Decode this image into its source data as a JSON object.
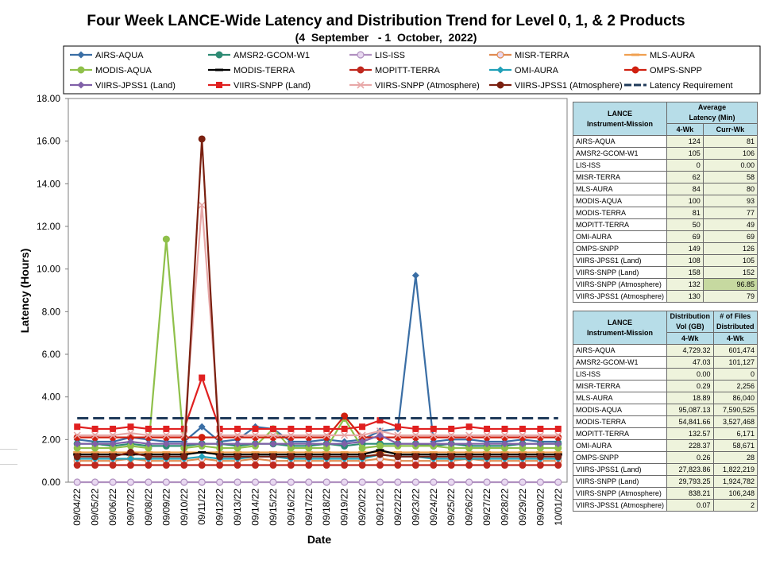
{
  "title": "Four Week LANCE-Wide Latency and Distribution Trend for Level 0, 1, & 2 Products",
  "subtitle": "(4  September   - 1  October,  2022)",
  "chart_data": {
    "type": "line",
    "xlabel": "Date",
    "ylabel": "Latency (Hours)",
    "ylim": [
      0,
      18
    ],
    "yticks": [
      "0.00",
      "2.00",
      "4.00",
      "6.00",
      "8.00",
      "10.00",
      "12.00",
      "14.00",
      "16.00",
      "18.00"
    ],
    "legend_position": "top",
    "grid": false,
    "categories": [
      "09/04/22",
      "09/05/22",
      "09/06/22",
      "09/07/22",
      "09/08/22",
      "09/09/22",
      "09/10/22",
      "09/11/22",
      "09/12/22",
      "09/13/22",
      "09/14/22",
      "09/15/22",
      "09/16/22",
      "09/17/22",
      "09/18/22",
      "09/19/22",
      "09/20/22",
      "09/21/22",
      "09/22/22",
      "09/23/22",
      "09/24/22",
      "09/25/22",
      "09/26/22",
      "09/27/22",
      "09/28/22",
      "09/29/22",
      "09/30/22",
      "10/01/22"
    ],
    "series": [
      {
        "name": "AIRS-AQUA",
        "color": "#3a6ea5",
        "marker": "diamond",
        "values": [
          2.0,
          1.9,
          1.9,
          2.1,
          2.0,
          1.9,
          1.9,
          2.6,
          1.9,
          2.0,
          2.6,
          2.5,
          1.9,
          1.9,
          2.0,
          1.9,
          2.0,
          2.4,
          2.5,
          9.7,
          1.9,
          2.0,
          2.0,
          1.9,
          1.9,
          2.0,
          1.9,
          1.9
        ]
      },
      {
        "name": "AMSR2-GCOM-W1",
        "color": "#2e8b74",
        "marker": "circle",
        "values": [
          1.8,
          1.8,
          1.7,
          1.8,
          1.7,
          1.7,
          1.7,
          1.8,
          1.8,
          1.7,
          1.8,
          1.8,
          1.7,
          1.7,
          1.8,
          1.7,
          1.8,
          1.8,
          1.8,
          1.8,
          1.7,
          1.8,
          1.7,
          1.7,
          1.7,
          1.8,
          1.8,
          1.8
        ]
      },
      {
        "name": "LIS-ISS",
        "color": "#b090c0",
        "marker": "circle-open",
        "values": [
          0,
          0,
          0,
          0,
          0,
          0,
          0,
          0,
          0,
          0,
          0,
          0,
          0,
          0,
          0,
          0,
          0,
          0,
          0,
          0,
          0,
          0,
          0,
          0,
          0,
          0,
          0,
          0
        ]
      },
      {
        "name": "MISR-TERRA",
        "color": "#e08a50",
        "marker": "circle-open",
        "values": [
          1.0,
          1.0,
          1.0,
          1.1,
          1.0,
          1.0,
          1.0,
          1.1,
          1.0,
          1.0,
          1.1,
          1.0,
          1.0,
          1.0,
          1.0,
          1.0,
          1.0,
          1.1,
          1.0,
          1.0,
          1.0,
          1.0,
          1.1,
          1.0,
          1.0,
          1.0,
          1.0,
          1.0
        ]
      },
      {
        "name": "MLS-AURA",
        "color": "#f0a050",
        "marker": "dash",
        "values": [
          1.4,
          1.4,
          1.4,
          1.4,
          1.4,
          1.4,
          1.4,
          1.4,
          1.4,
          1.4,
          1.4,
          1.4,
          1.4,
          1.4,
          1.4,
          1.4,
          1.4,
          1.4,
          1.4,
          1.4,
          1.4,
          1.4,
          1.4,
          1.4,
          1.4,
          1.4,
          1.4,
          1.4
        ]
      },
      {
        "name": "MODIS-AQUA",
        "color": "#8fc04a",
        "marker": "circle",
        "values": [
          1.6,
          1.6,
          1.6,
          1.7,
          1.6,
          11.4,
          1.6,
          1.7,
          1.6,
          1.6,
          1.7,
          2.5,
          1.6,
          1.6,
          1.6,
          3.0,
          1.6,
          1.7,
          1.7,
          1.7,
          1.7,
          1.6,
          1.6,
          1.6,
          1.6,
          1.6,
          1.6,
          1.6
        ]
      },
      {
        "name": "MODIS-TERRA",
        "color": "#000000",
        "marker": "dash",
        "values": [
          1.3,
          1.3,
          1.3,
          1.3,
          1.3,
          1.3,
          1.3,
          1.4,
          1.3,
          1.3,
          1.3,
          1.3,
          1.3,
          1.3,
          1.3,
          1.3,
          1.3,
          1.5,
          1.3,
          1.3,
          1.3,
          1.3,
          1.3,
          1.3,
          1.3,
          1.3,
          1.3,
          1.3
        ]
      },
      {
        "name": "MOPITT-TERRA",
        "color": "#c0281e",
        "marker": "circle",
        "values": [
          0.8,
          0.8,
          0.8,
          0.8,
          0.8,
          0.8,
          0.8,
          0.8,
          0.8,
          0.8,
          0.8,
          0.8,
          0.8,
          0.8,
          0.8,
          0.8,
          0.8,
          0.8,
          0.8,
          0.8,
          0.8,
          0.8,
          0.8,
          0.8,
          0.8,
          0.8,
          0.8,
          0.8
        ]
      },
      {
        "name": "OMI-AURA",
        "color": "#20a0b8",
        "marker": "diamond",
        "values": [
          1.1,
          1.1,
          1.1,
          1.1,
          1.1,
          1.1,
          1.1,
          1.2,
          1.1,
          1.1,
          1.2,
          1.2,
          1.1,
          1.1,
          1.1,
          1.1,
          1.1,
          1.3,
          1.2,
          1.2,
          1.1,
          1.1,
          1.1,
          1.1,
          1.1,
          1.1,
          1.1,
          1.1
        ]
      },
      {
        "name": "OMPS-SNPP",
        "color": "#d02010",
        "marker": "circle",
        "values": [
          2.1,
          2.1,
          2.1,
          2.1,
          2.1,
          2.1,
          2.1,
          2.1,
          2.1,
          2.1,
          2.1,
          2.1,
          2.1,
          2.1,
          2.1,
          3.1,
          2.1,
          2.1,
          2.1,
          2.1,
          2.1,
          2.1,
          2.1,
          2.1,
          2.1,
          2.1,
          2.1,
          2.1
        ]
      },
      {
        "name": "VIIRS-JPSS1 (Land)",
        "color": "#8060a8",
        "marker": "diamond",
        "values": [
          1.8,
          1.8,
          1.8,
          1.9,
          1.8,
          1.8,
          1.8,
          1.8,
          1.8,
          1.8,
          1.8,
          1.8,
          1.8,
          1.8,
          1.8,
          1.8,
          1.9,
          2.2,
          1.8,
          1.8,
          1.8,
          1.8,
          1.8,
          1.8,
          1.8,
          1.8,
          1.8,
          1.8
        ]
      },
      {
        "name": "VIIRS-SNPP (Land)",
        "color": "#e02020",
        "marker": "square",
        "values": [
          2.6,
          2.5,
          2.5,
          2.6,
          2.5,
          2.5,
          2.5,
          4.9,
          2.5,
          2.5,
          2.5,
          2.5,
          2.5,
          2.5,
          2.5,
          2.5,
          2.6,
          2.9,
          2.6,
          2.5,
          2.5,
          2.5,
          2.6,
          2.5,
          2.5,
          2.5,
          2.5,
          2.5
        ]
      },
      {
        "name": "VIIRS-SNPP (Atmosphere)",
        "color": "#e8a8a8",
        "marker": "x",
        "values": [
          2.2,
          2.2,
          2.2,
          2.3,
          2.2,
          2.2,
          2.2,
          13.0,
          2.2,
          2.2,
          2.2,
          2.2,
          2.2,
          2.2,
          2.2,
          2.2,
          2.2,
          2.4,
          2.2,
          2.2,
          2.2,
          2.2,
          2.2,
          2.2,
          2.2,
          2.2,
          2.2,
          2.2
        ]
      },
      {
        "name": "VIIRS-JPSS1 (Atmosphere)",
        "color": "#7a2010",
        "marker": "circle",
        "values": [
          1.2,
          1.2,
          1.2,
          1.4,
          1.2,
          1.2,
          1.2,
          16.1,
          1.2,
          1.2,
          1.2,
          1.2,
          1.2,
          1.2,
          1.2,
          1.2,
          1.2,
          1.3,
          1.2,
          1.2,
          1.2,
          1.2,
          1.2,
          1.2,
          1.2,
          1.2,
          1.2,
          1.2
        ]
      },
      {
        "name": "Latency Requirement",
        "color": "#1f3a5a",
        "marker": "dash-thick",
        "values": [
          3,
          3,
          3,
          3,
          3,
          3,
          3,
          3,
          3,
          3,
          3,
          3,
          3,
          3,
          3,
          3,
          3,
          3,
          3,
          3,
          3,
          3,
          3,
          3,
          3,
          3,
          3,
          3
        ]
      }
    ]
  },
  "latency_table": {
    "header_left": "LANCE\nInstrument-Mission",
    "header_right": "Average\nLatency (Min)",
    "col1": "4-Wk",
    "col2": "Curr-Wk",
    "rows": [
      {
        "name": "AIRS-AQUA",
        "a": "124",
        "b": "81"
      },
      {
        "name": "AMSR2-GCOM-W1",
        "a": "105",
        "b": "106"
      },
      {
        "name": "LIS-ISS",
        "a": "0",
        "b": "0.00"
      },
      {
        "name": "MISR-TERRA",
        "a": "62",
        "b": "58"
      },
      {
        "name": "MLS-AURA",
        "a": "84",
        "b": "80"
      },
      {
        "name": "MODIS-AQUA",
        "a": "100",
        "b": "93"
      },
      {
        "name": "MODIS-TERRA",
        "a": "81",
        "b": "77"
      },
      {
        "name": "MOPITT-TERRA",
        "a": "50",
        "b": "49"
      },
      {
        "name": "OMI-AURA",
        "a": "69",
        "b": "69"
      },
      {
        "name": "OMPS-SNPP",
        "a": "149",
        "b": "126"
      },
      {
        "name": "VIIRS-JPSS1 (Land)",
        "a": "108",
        "b": "105"
      },
      {
        "name": "VIIRS-SNPP (Land)",
        "a": "158",
        "b": "152"
      },
      {
        "name": "VIIRS-SNPP (Atmosphere)",
        "a": "132",
        "b": "96.85"
      },
      {
        "name": "VIIRS-JPSS1 (Atmosphere)",
        "a": "130",
        "b": "79"
      }
    ]
  },
  "distribution_table": {
    "header_left": "LANCE\nInstrument-Mission",
    "header_mid": "Distribution\nVol (GB)",
    "header_right": "# of Files\nDistributed",
    "col1": "4-Wk",
    "col2": "4-Wk",
    "rows": [
      {
        "name": "AIRS-AQUA",
        "a": "4,729.32",
        "b": "601,474"
      },
      {
        "name": "AMSR2-GCOM-W1",
        "a": "47.03",
        "b": "101,127"
      },
      {
        "name": "LIS-ISS",
        "a": "0.00",
        "b": "0"
      },
      {
        "name": "MISR-TERRA",
        "a": "0.29",
        "b": "2,256"
      },
      {
        "name": "MLS-AURA",
        "a": "18.89",
        "b": "86,040"
      },
      {
        "name": "MODIS-AQUA",
        "a": "95,087.13",
        "b": "7,590,525"
      },
      {
        "name": "MODIS-TERRA",
        "a": "54,841.66",
        "b": "3,527,468"
      },
      {
        "name": "MOPITT-TERRA",
        "a": "132.57",
        "b": "6,171"
      },
      {
        "name": "OMI-AURA",
        "a": "228.37",
        "b": "58,671"
      },
      {
        "name": "OMPS-SNPP",
        "a": "0.26",
        "b": "28"
      },
      {
        "name": "VIIRS-JPSS1 (Land)",
        "a": "27,823.86",
        "b": "1,822,219"
      },
      {
        "name": "VIIRS-SNPP (Land)",
        "a": "29,793.25",
        "b": "1,924,782"
      },
      {
        "name": "VIIRS-SNPP (Atmosphere)",
        "a": "838.21",
        "b": "106,248"
      },
      {
        "name": "VIIRS-JPSS1 (Atmosphere)",
        "a": "0.07",
        "b": "2"
      }
    ]
  }
}
